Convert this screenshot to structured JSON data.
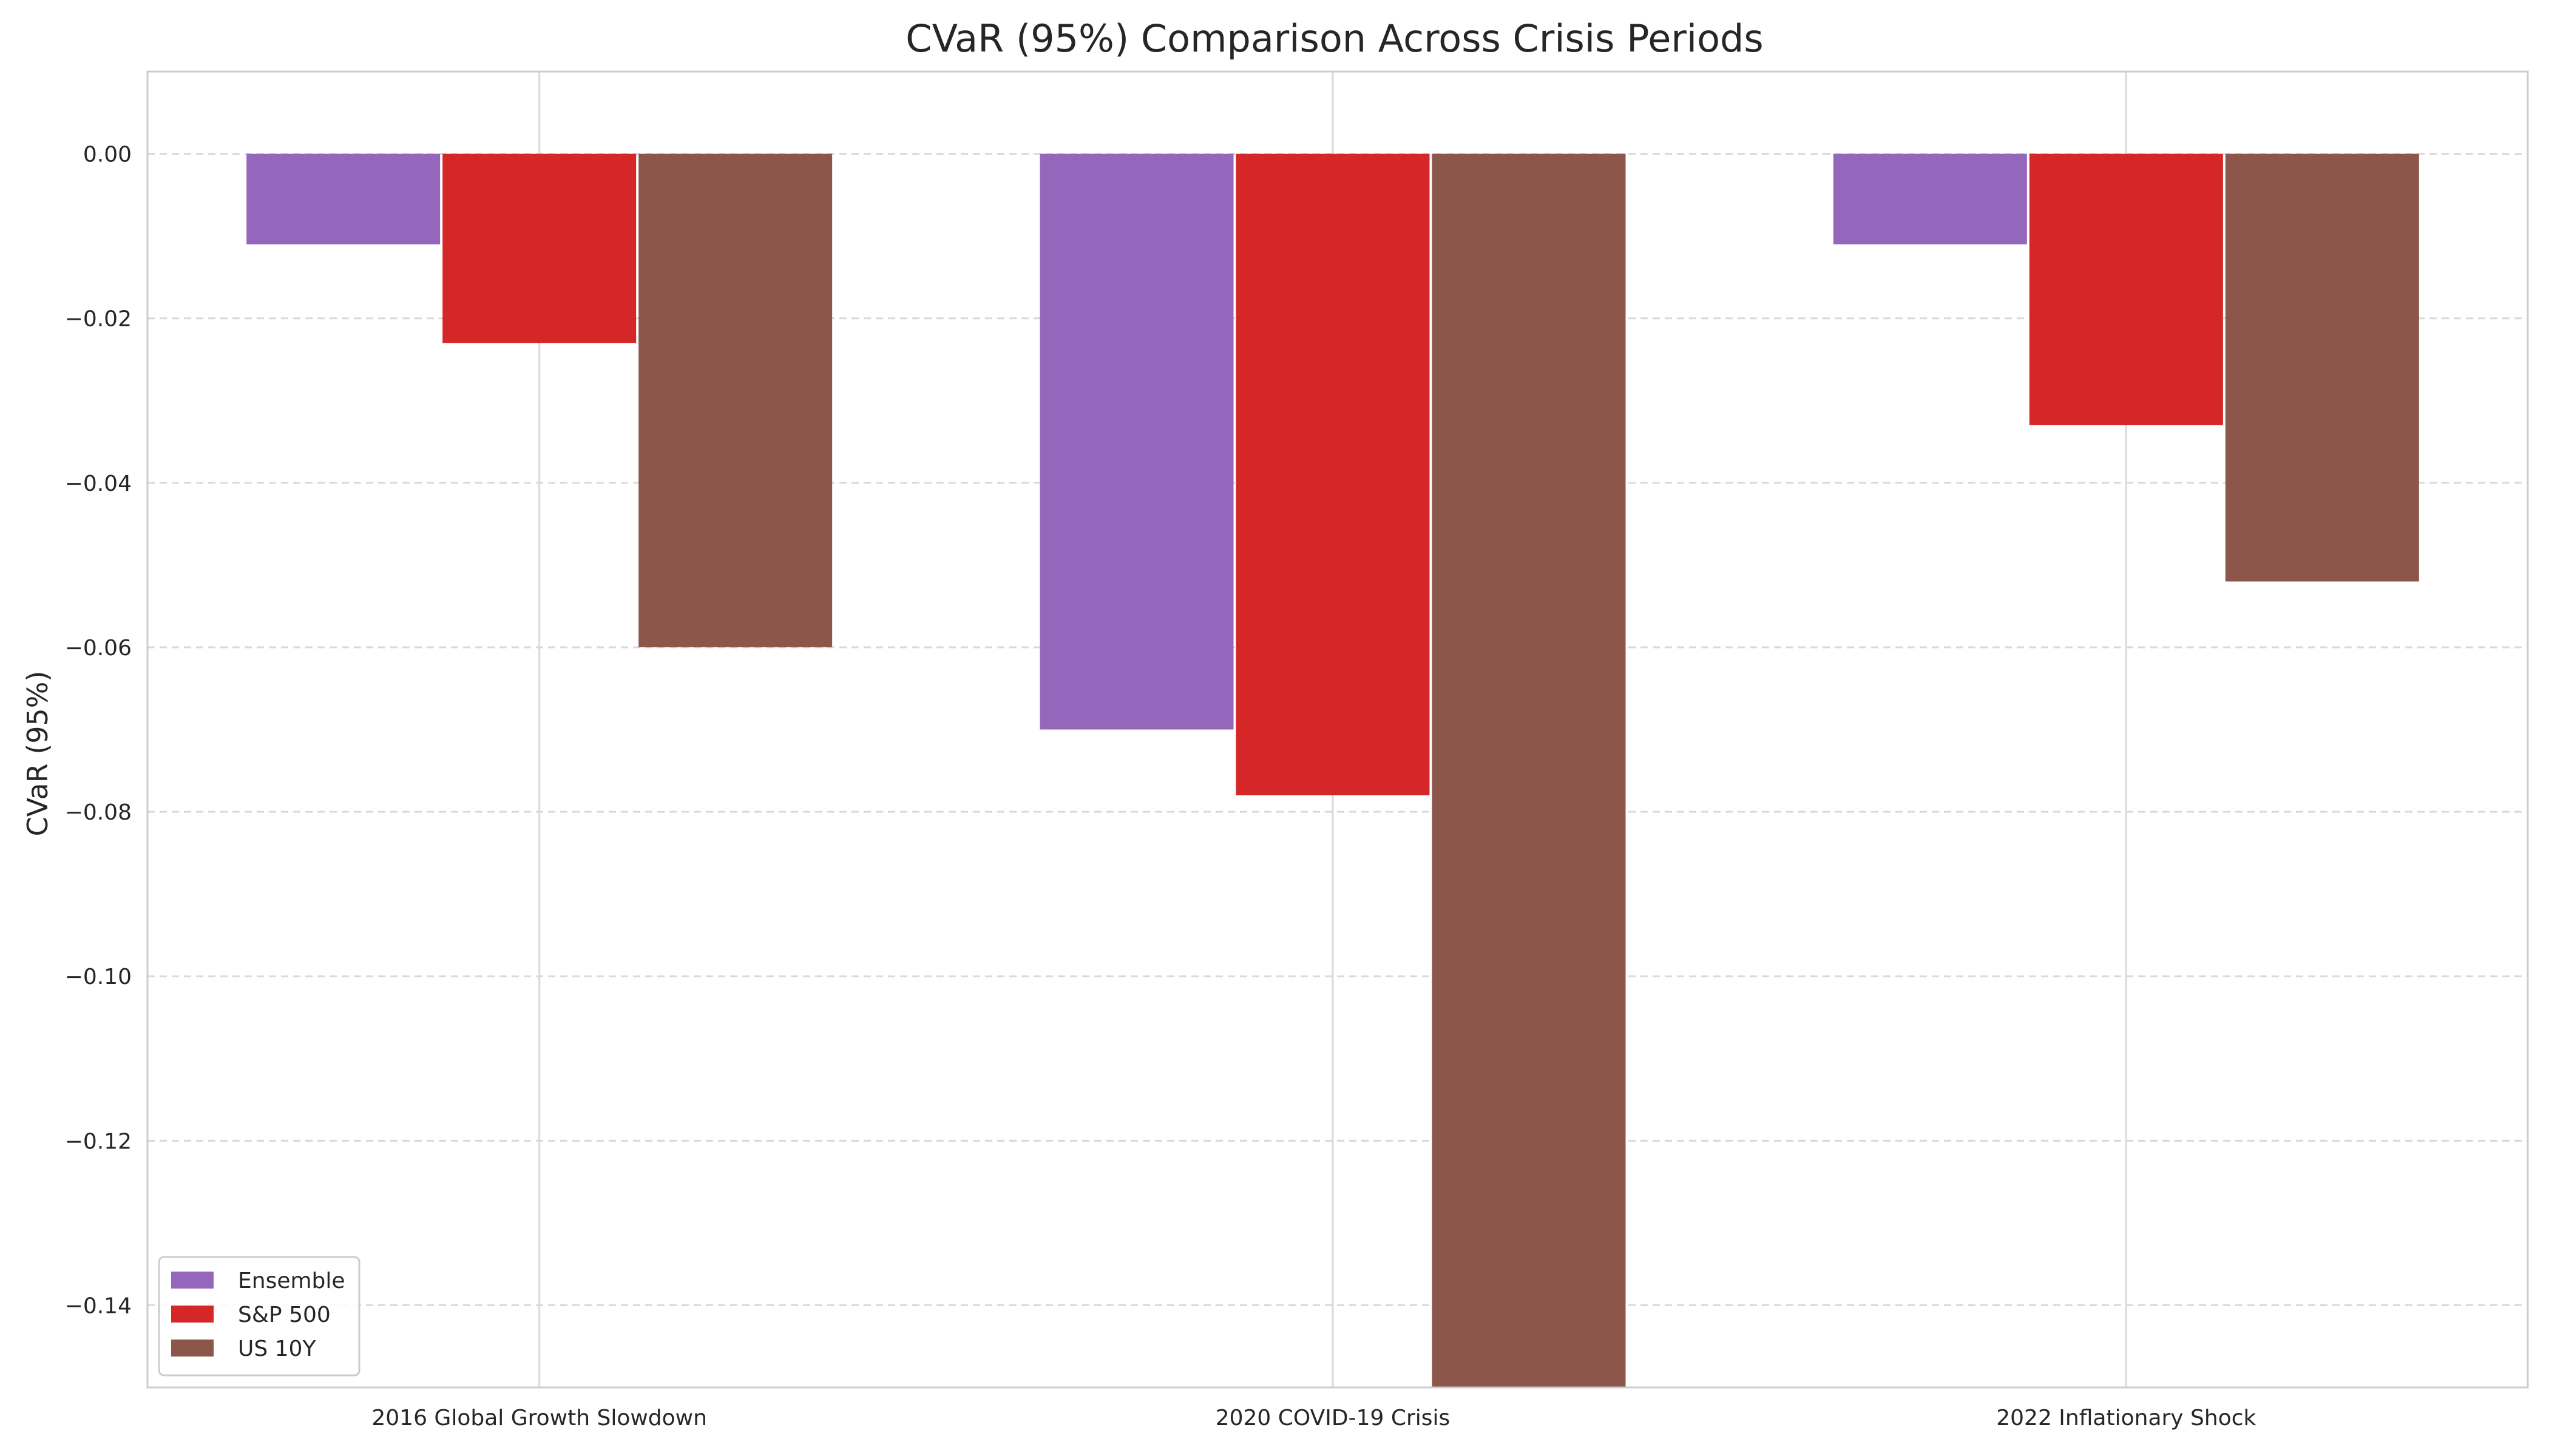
{
  "chart_data": {
    "type": "bar",
    "title": "CVaR (95%) Comparison Across Crisis Periods",
    "xlabel": "",
    "ylabel": "CVaR (95%)",
    "categories": [
      "2016 Global Growth Slowdown",
      "2020 COVID-19 Crisis",
      "2022 Inflationary Shock"
    ],
    "series": [
      {
        "name": "Ensemble",
        "color": "#9467bd",
        "values": [
          -0.011,
          -0.07,
          -0.011
        ]
      },
      {
        "name": "S&P 500",
        "color": "#d62728",
        "values": [
          -0.023,
          -0.078,
          -0.033
        ]
      },
      {
        "name": "US 10Y",
        "color": "#8c564b",
        "values": [
          -0.06,
          -0.156,
          -0.052
        ]
      }
    ],
    "ylim": [
      -0.15,
      0.01
    ],
    "yticks": [
      0.0,
      -0.02,
      -0.04,
      -0.06,
      -0.08,
      -0.1,
      -0.12,
      -0.14
    ],
    "ytick_labels": [
      "0.00",
      "−0.02",
      "−0.04",
      "−0.06",
      "−0.08",
      "−0.10",
      "−0.12",
      "−0.14"
    ],
    "grid": {
      "horizontal": "dashed",
      "vertical": "solid"
    },
    "legend_position": "lower-left"
  }
}
